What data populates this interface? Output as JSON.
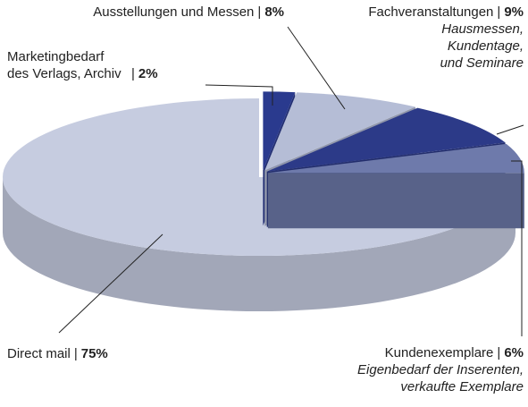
{
  "chart_data": {
    "type": "pie3d",
    "categories": [
      "Marketingbedarf des Verlags, Archiv",
      "Ausstellungen und Messen",
      "Fachveranstaltungen",
      "Kundenexemplare",
      "Direct mail"
    ],
    "values": [
      2,
      8,
      9,
      6,
      75
    ],
    "value_labels": [
      "2%",
      "8%",
      "9%",
      "6%",
      "75%"
    ],
    "separator": "|",
    "notes": [
      null,
      null,
      [
        "Hausmessen,",
        "Kundentage,",
        "und Seminare"
      ],
      [
        "Eigenbedarf der Inserenten,",
        "verkaufte Exemplare"
      ],
      null
    ],
    "colors": [
      "#2a3a8e",
      "#b5bdd6",
      "#2c3a88",
      "#6e7aab",
      "#c6cce0"
    ],
    "exploded": [
      true,
      true,
      true,
      true,
      false
    ]
  }
}
